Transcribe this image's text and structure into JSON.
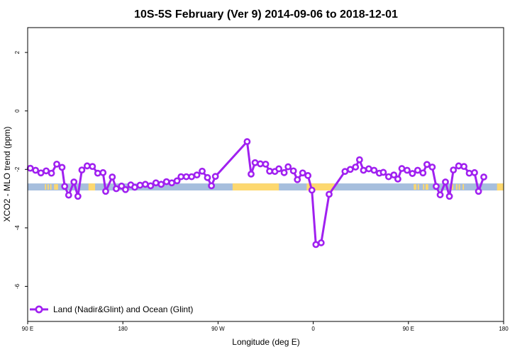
{
  "chart_data": {
    "type": "line",
    "title": "10S-5S February (Ver 9)   2014-09-06 to 2018-12-01",
    "xlabel": "Longitude (deg E)",
    "ylabel": "XCO2 - MLO trend (ppm)",
    "xlim": [
      90,
      450
    ],
    "ylim": [
      -7.2,
      2.85
    ],
    "x_ticks": [
      {
        "value": 90,
        "label": "90 E"
      },
      {
        "value": 162,
        "label": "180"
      },
      {
        "value": 234,
        "label": "90 W"
      },
      {
        "value": 306,
        "label": "0"
      },
      {
        "value": 378,
        "label": "90 E"
      },
      {
        "value": 450,
        "label": "180"
      }
    ],
    "y_ticks": [
      {
        "value": 2,
        "label": "2"
      },
      {
        "value": 0,
        "label": "0"
      },
      {
        "value": -2,
        "label": "-2"
      },
      {
        "value": -4,
        "label": "-4"
      },
      {
        "value": -6,
        "label": "-6"
      }
    ],
    "grid": false,
    "legend_position": "bottom-left",
    "series": [
      {
        "name": "Land (Nadir&Glint) and Ocean (Glint)",
        "color": "#a020f0",
        "points": [
          [
            92,
            -1.96
          ],
          [
            96,
            -2.03
          ],
          [
            100,
            -2.12
          ],
          [
            104,
            -2.05
          ],
          [
            108,
            -2.13
          ],
          [
            112,
            -1.82
          ],
          [
            116,
            -1.93
          ],
          [
            118,
            -2.58
          ],
          [
            121,
            -2.88
          ],
          [
            125,
            -2.43
          ],
          [
            128,
            -2.92
          ],
          [
            131,
            -2.02
          ],
          [
            135,
            -1.88
          ],
          [
            139,
            -1.9
          ],
          [
            143,
            -2.13
          ],
          [
            147,
            -2.11
          ],
          [
            149,
            -2.75
          ],
          [
            154,
            -2.26
          ],
          [
            157,
            -2.66
          ],
          [
            161,
            -2.57
          ],
          [
            164,
            -2.69
          ],
          [
            168,
            -2.53
          ],
          [
            171,
            -2.61
          ],
          [
            175,
            -2.54
          ],
          [
            179,
            -2.51
          ],
          [
            183,
            -2.56
          ],
          [
            187,
            -2.46
          ],
          [
            191,
            -2.51
          ],
          [
            195,
            -2.42
          ],
          [
            199,
            -2.46
          ],
          [
            203,
            -2.39
          ],
          [
            206,
            -2.25
          ],
          [
            210,
            -2.25
          ],
          [
            214,
            -2.25
          ],
          [
            218,
            -2.19
          ],
          [
            222,
            -2.06
          ],
          [
            226,
            -2.28
          ],
          [
            229,
            -2.56
          ],
          [
            232,
            -2.24
          ],
          [
            256,
            -1.05
          ],
          [
            259,
            -2.16
          ],
          [
            262,
            -1.77
          ],
          [
            266,
            -1.81
          ],
          [
            270,
            -1.82
          ],
          [
            273,
            -2.06
          ],
          [
            277,
            -2.07
          ],
          [
            280,
            -1.98
          ],
          [
            284,
            -2.11
          ],
          [
            287,
            -1.91
          ],
          [
            291,
            -2.05
          ],
          [
            294,
            -2.35
          ],
          [
            298,
            -2.12
          ],
          [
            302,
            -2.21
          ],
          [
            305,
            -2.71
          ],
          [
            308,
            -4.57
          ],
          [
            312,
            -4.51
          ],
          [
            318,
            -2.85
          ],
          [
            330,
            -2.07
          ],
          [
            334,
            -2.0
          ],
          [
            338,
            -1.92
          ],
          [
            341,
            -1.67
          ],
          [
            344,
            -2.03
          ],
          [
            348,
            -1.98
          ],
          [
            352,
            -2.03
          ],
          [
            356,
            -2.13
          ],
          [
            359,
            -2.1
          ],
          [
            363,
            -2.25
          ],
          [
            367,
            -2.19
          ],
          [
            370,
            -2.33
          ],
          [
            373,
            -1.97
          ],
          [
            377,
            -2.03
          ],
          [
            381,
            -2.14
          ],
          [
            385,
            -2.03
          ],
          [
            389,
            -2.12
          ],
          [
            392,
            -1.83
          ],
          [
            396,
            -1.92
          ],
          [
            399,
            -2.58
          ],
          [
            402,
            -2.87
          ],
          [
            406,
            -2.43
          ],
          [
            409,
            -2.92
          ],
          [
            412,
            -2.02
          ],
          [
            416,
            -1.88
          ],
          [
            420,
            -1.9
          ],
          [
            424,
            -2.13
          ],
          [
            428,
            -2.11
          ],
          [
            431,
            -2.75
          ],
          [
            435,
            -2.26
          ]
        ]
      }
    ],
    "surface_band": {
      "y_range": [
        -2.48,
        -2.72
      ],
      "ocean_color": "#a6bedd",
      "land_color": "#fdd86f",
      "land_segments": [
        [
          136,
          141
        ],
        [
          245,
          280
        ],
        [
          301,
          322
        ],
        [
          445,
          450
        ]
      ],
      "land_specks": [
        [
          103,
          104
        ],
        [
          105,
          106
        ],
        [
          107,
          108
        ],
        [
          110,
          111
        ],
        [
          111,
          113
        ],
        [
          382,
          383
        ],
        [
          383,
          384
        ],
        [
          385,
          386
        ],
        [
          389,
          390
        ],
        [
          391,
          393
        ],
        [
          410,
          411
        ],
        [
          411,
          412
        ],
        [
          414,
          415
        ],
        [
          416,
          417
        ],
        [
          419,
          420
        ]
      ]
    }
  }
}
